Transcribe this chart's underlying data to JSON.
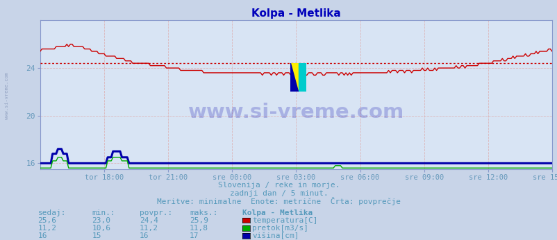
{
  "title": "Kolpa - Metlika",
  "title_color": "#0000bb",
  "bg_color": "#c8d4e8",
  "plot_bg_color": "#d8e4f4",
  "temp_color": "#cc0000",
  "pretok_color": "#00aa00",
  "visina_color": "#0000aa",
  "avg_temp": 24.4,
  "ylim": [
    15.5,
    28.0
  ],
  "xlim": [
    0,
    288
  ],
  "xlabel_ticks": [
    "tor 18:00",
    "tor 21:00",
    "sre 00:00",
    "sre 03:00",
    "sre 06:00",
    "sre 09:00",
    "sre 12:00",
    "sre 15:00"
  ],
  "ylabel_ticks": [
    16,
    20,
    24
  ],
  "tick_color": "#6699bb",
  "grid_color": "#ddaaaa",
  "watermark_text": "www.si-vreme.com",
  "watermark_color": "#0000aa",
  "watermark_alpha": 0.22,
  "sidewater_text": "www.si-vreme.com",
  "sidewater_color": "#8899bb",
  "subtitle1": "Slovenija / reke in morje.",
  "subtitle2": "zadnji dan / 5 minut.",
  "subtitle3": "Meritve: minimalne  Enote: metrične  Črta: povprečje",
  "subtitle_color": "#5599bb",
  "table_color": "#5599bb",
  "table_headers": [
    "sedaj:",
    "min.:",
    "povpr.:",
    "maks.:",
    "Kolpa - Metlika"
  ],
  "rows": [
    {
      "sedaj": "25,6",
      "min": "23,0",
      "povpr": "24,4",
      "maks": "25,9",
      "label": "temperatura[C]",
      "color": "#cc0000"
    },
    {
      "sedaj": "11,2",
      "min": "10,6",
      "povpr": "11,2",
      "maks": "11,8",
      "label": "pretok[m3/s]",
      "color": "#00aa00"
    },
    {
      "sedaj": "16",
      "min": "15",
      "povpr": "16",
      "maks": "17",
      "label": "višina[cm]",
      "color": "#0000aa"
    }
  ]
}
